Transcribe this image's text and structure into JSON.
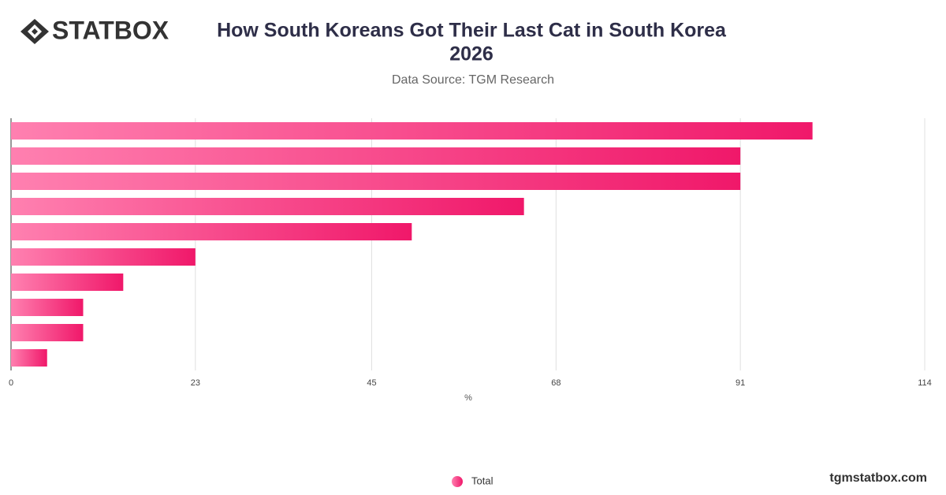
{
  "brand": "STATBOX",
  "footer": "tgmstatbox.com",
  "chart_data": {
    "type": "hbar",
    "title": [
      "How South Koreans Got Their Last Cat in South Korea",
      "2026"
    ],
    "subtitle": "Data Source: TGM Research",
    "x_label": "%",
    "categories": [
      null,
      null,
      null,
      null,
      null,
      null,
      null,
      null,
      null,
      null
    ],
    "series": [
      {
        "name": "Total",
        "color": "#f0186a",
        "values": [
          100,
          91,
          91,
          64,
          50,
          23,
          14,
          9,
          9,
          4.5
        ]
      }
    ],
    "xlim": [
      0,
      114
    ],
    "xticks": [
      0,
      23,
      45,
      68,
      91,
      114
    ],
    "grid": true,
    "legend": "bottom"
  }
}
